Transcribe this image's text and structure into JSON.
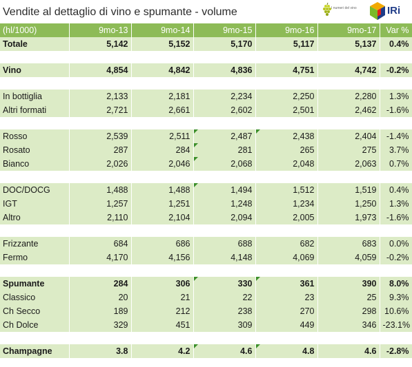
{
  "title": "Vendite al dettaglio di vino e spumante - volume",
  "logos": {
    "left_text": "I numeri del vino",
    "right_text": "IRi"
  },
  "colors": {
    "header_bg": "#8dbb57",
    "row_bg": "#dcebc6",
    "marker": "#3c8f2a",
    "iri_blue": "#1f3c88"
  },
  "table": {
    "columns": [
      "(hl/1000)",
      "9mo-13",
      "9mo-14",
      "9mo-15",
      "9mo-16",
      "9mo-17",
      "Var %"
    ],
    "rows": [
      {
        "label": "Totale",
        "values": [
          "5,142",
          "5,152",
          "5,170",
          "5,117",
          "5,137",
          "0.4%"
        ]
      },
      {
        "label": "",
        "values": [
          "",
          "",
          "",
          "",
          "",
          ""
        ]
      },
      {
        "label": "Vino",
        "values": [
          "4,854",
          "4,842",
          "4,836",
          "4,751",
          "4,742",
          "-0.2%"
        ]
      },
      {
        "label": "",
        "values": [
          "",
          "",
          "",
          "",
          "",
          ""
        ]
      },
      {
        "label": "In bottiglia",
        "values": [
          "2,133",
          "2,181",
          "2,234",
          "2,250",
          "2,280",
          "1.3%"
        ]
      },
      {
        "label": "Altri formati",
        "values": [
          "2,721",
          "2,661",
          "2,602",
          "2,501",
          "2,462",
          "-1.6%"
        ]
      },
      {
        "label": "",
        "values": [
          "",
          "",
          "",
          "",
          "",
          ""
        ]
      },
      {
        "label": "Rosso",
        "values": [
          "2,539",
          "2,511",
          "2,487",
          "2,438",
          "2,404",
          "-1.4%"
        ]
      },
      {
        "label": "Rosato",
        "values": [
          "287",
          "284",
          "281",
          "265",
          "275",
          "3.7%"
        ]
      },
      {
        "label": "Bianco",
        "values": [
          "2,026",
          "2,046",
          "2,068",
          "2,048",
          "2,063",
          "0.7%"
        ]
      },
      {
        "label": "",
        "values": [
          "",
          "",
          "",
          "",
          "",
          ""
        ]
      },
      {
        "label": "DOC/DOCG",
        "values": [
          "1,488",
          "1,488",
          "1,494",
          "1,512",
          "1,519",
          "0.4%"
        ]
      },
      {
        "label": "IGT",
        "values": [
          "1,257",
          "1,251",
          "1,248",
          "1,234",
          "1,250",
          "1.3%"
        ]
      },
      {
        "label": "Altro",
        "values": [
          "2,110",
          "2,104",
          "2,094",
          "2,005",
          "1,973",
          "-1.6%"
        ]
      },
      {
        "label": "",
        "values": [
          "",
          "",
          "",
          "",
          "",
          ""
        ]
      },
      {
        "label": "Frizzante",
        "values": [
          "684",
          "686",
          "688",
          "682",
          "683",
          "0.0%"
        ]
      },
      {
        "label": "Fermo",
        "values": [
          "4,170",
          "4,156",
          "4,148",
          "4,069",
          "4,059",
          "-0.2%"
        ]
      },
      {
        "label": "",
        "values": [
          "",
          "",
          "",
          "",
          "",
          ""
        ]
      },
      {
        "label": "Spumante",
        "values": [
          "284",
          "306",
          "330",
          "361",
          "390",
          "8.0%"
        ]
      },
      {
        "label": "Classico",
        "values": [
          "20",
          "21",
          "22",
          "23",
          "25",
          "9.3%"
        ]
      },
      {
        "label": "Ch Secco",
        "values": [
          "189",
          "212",
          "238",
          "270",
          "298",
          "10.6%"
        ]
      },
      {
        "label": "Ch Dolce",
        "values": [
          "329",
          "451",
          "309",
          "449",
          "346",
          "-23.1%"
        ]
      },
      {
        "label": "",
        "values": [
          "",
          "",
          "",
          "",
          "",
          ""
        ]
      },
      {
        "label": "Champagne",
        "values": [
          "3.8",
          "4.2",
          "4.6",
          "4.8",
          "4.6",
          "-2.8%"
        ]
      }
    ]
  }
}
